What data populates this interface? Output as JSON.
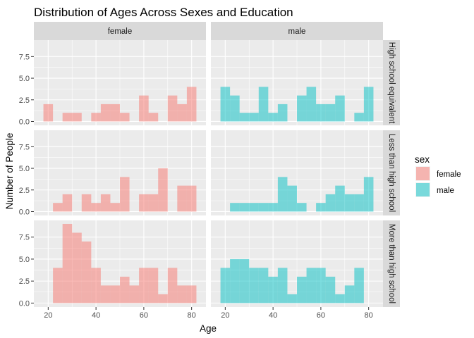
{
  "chart_data": {
    "type": "bar",
    "subtype": "faceted-histogram",
    "title": "Distribution of Ages Across Sexes and Education",
    "xlabel": "Age",
    "ylabel": "Number of People",
    "xlim": [
      14,
      86
    ],
    "ylim": [
      -0.45,
      9.4
    ],
    "x_ticks": [
      20,
      40,
      60,
      80
    ],
    "y_ticks": [
      0,
      2.5,
      5,
      7.5
    ],
    "y_tick_labels": [
      "0.0",
      "2.5",
      "5.0",
      "7.5"
    ],
    "bin_width": 4,
    "bin_starts": [
      18,
      22,
      26,
      30,
      34,
      38,
      42,
      46,
      50,
      54,
      58,
      62,
      66,
      70,
      74,
      78
    ],
    "grid": true,
    "legend": {
      "title": "sex",
      "position": "right",
      "entries": [
        {
          "label": "female",
          "color": "#F8766D"
        },
        {
          "label": "male",
          "color": "#00BFC4"
        }
      ]
    },
    "columns": [
      "female",
      "male"
    ],
    "rows": [
      "High school equivalent",
      "Less than high school",
      "More than high school"
    ],
    "panels": [
      {
        "row": "High school equivalent",
        "column": "female",
        "values": [
          2,
          0,
          1,
          1,
          0,
          1,
          2,
          2,
          1,
          0,
          3,
          1,
          0,
          3,
          2,
          4
        ]
      },
      {
        "row": "High school equivalent",
        "column": "male",
        "values": [
          4,
          3,
          1,
          1,
          4,
          1,
          2,
          0,
          3,
          4,
          2,
          2,
          3,
          0,
          1,
          4
        ]
      },
      {
        "row": "Less than high school",
        "column": "female",
        "values": [
          0,
          1,
          2,
          0,
          2,
          1,
          2,
          1,
          4,
          0,
          2,
          2,
          5,
          0,
          3,
          3
        ]
      },
      {
        "row": "Less than high school",
        "column": "male",
        "values": [
          0,
          1,
          1,
          1,
          1,
          1,
          4,
          3,
          1,
          0,
          1,
          2,
          3,
          2,
          2,
          4
        ]
      },
      {
        "row": "More than high school",
        "column": "female",
        "values": [
          0,
          4,
          9,
          8,
          7,
          4,
          2,
          2,
          3,
          2,
          4,
          4,
          1,
          4,
          2,
          2
        ]
      },
      {
        "row": "More than high school",
        "column": "male",
        "values": [
          4,
          5,
          5,
          4,
          4,
          3,
          4,
          1,
          3,
          4,
          4,
          3,
          1,
          2,
          4,
          0
        ]
      }
    ]
  }
}
